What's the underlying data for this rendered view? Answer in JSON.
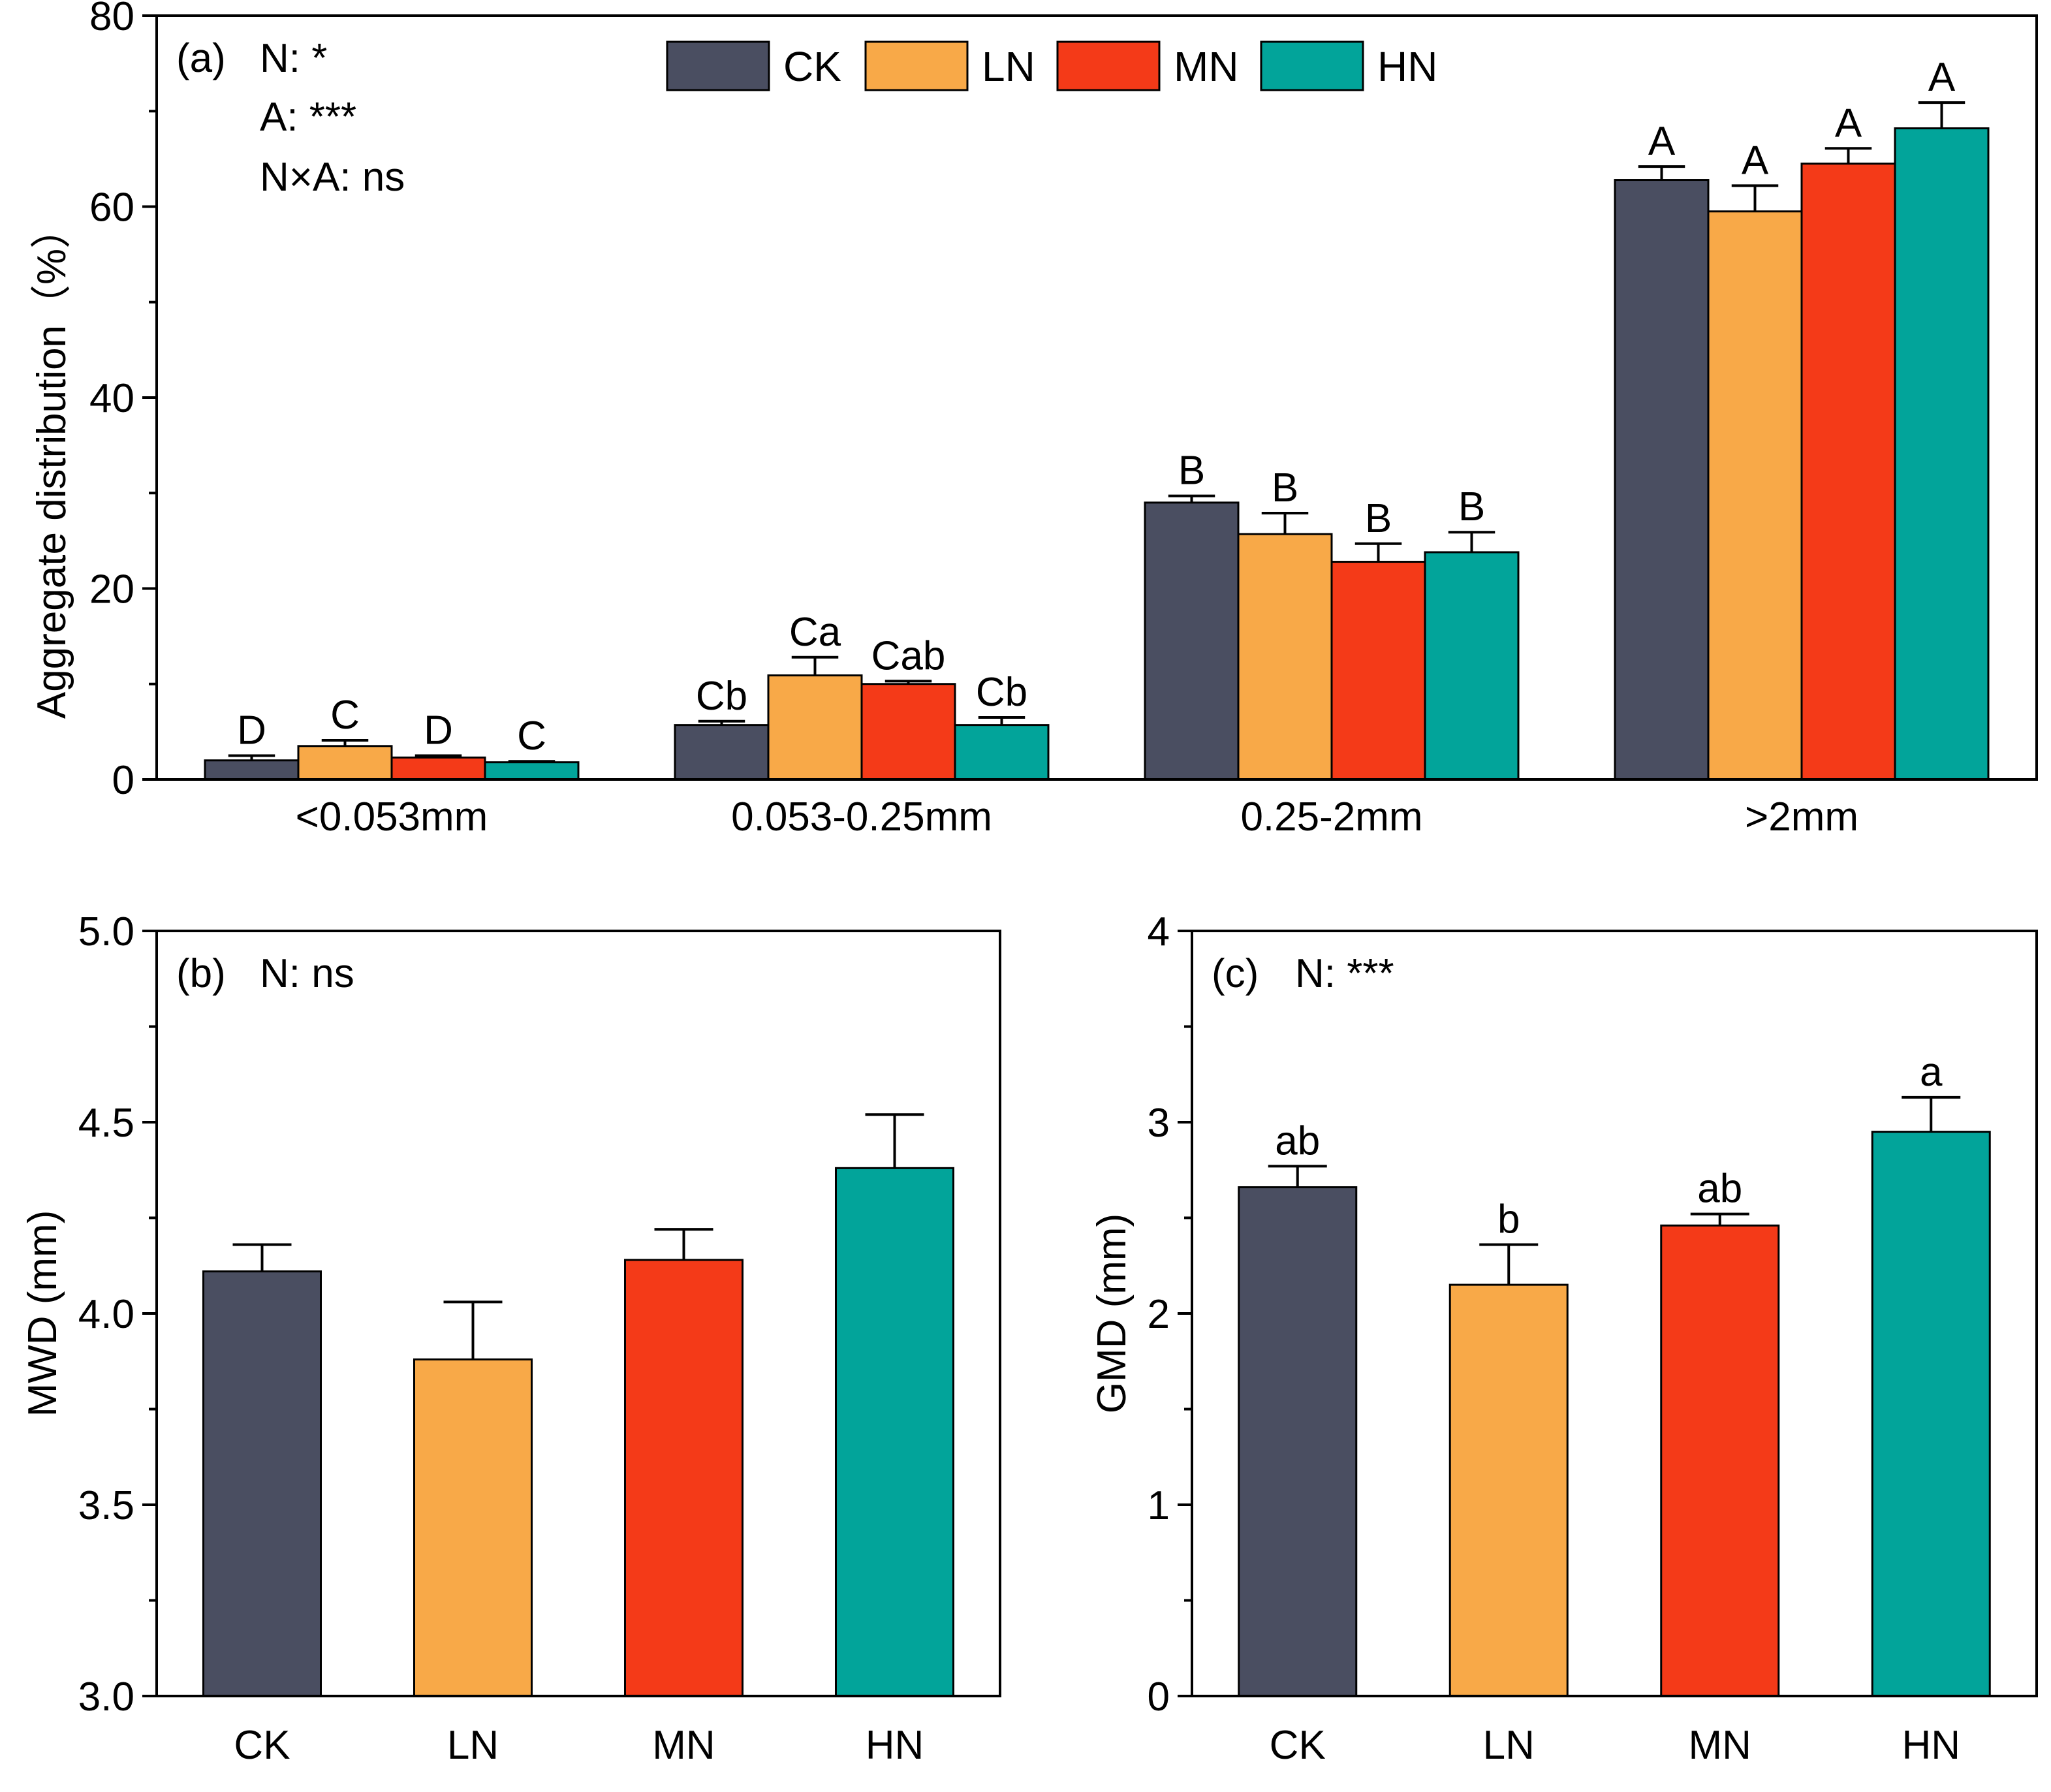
{
  "colors": {
    "CK": "#4a4e61",
    "LN": "#f8a948",
    "MN": "#f43a18",
    "HN": "#02a49a"
  },
  "legend": [
    "CK",
    "LN",
    "MN",
    "HN"
  ],
  "chart_data": [
    {
      "id": "a",
      "type": "bar",
      "panel_label": "(a)",
      "stats": [
        "N: *",
        "A: ***",
        "N×A: ns"
      ],
      "ylabel": "Aggregate distribution（%）",
      "xlabel": "",
      "ylim": [
        0,
        80
      ],
      "yticks": [
        "0",
        "20",
        "40",
        "60",
        "80"
      ],
      "categories": [
        "<0.053mm",
        "0.053-0.25mm",
        "0.25-2mm",
        ">2mm"
      ],
      "series": [
        {
          "name": "CK",
          "values": [
            2.0,
            5.7,
            29.0,
            62.8
          ],
          "errors": [
            0.5,
            0.4,
            0.7,
            1.4
          ],
          "letters": [
            "D",
            "Cb",
            "B",
            "A"
          ]
        },
        {
          "name": "LN",
          "values": [
            3.5,
            10.9,
            25.7,
            59.5
          ],
          "errors": [
            0.6,
            1.9,
            2.2,
            2.7
          ],
          "letters": [
            "C",
            "Ca",
            "B",
            "A"
          ]
        },
        {
          "name": "MN",
          "values": [
            2.3,
            10.0,
            22.8,
            64.5
          ],
          "errors": [
            0.2,
            0.3,
            1.9,
            1.6
          ],
          "letters": [
            "D",
            "Cab",
            "B",
            "A"
          ]
        },
        {
          "name": "HN",
          "values": [
            1.8,
            5.7,
            23.8,
            68.2
          ],
          "errors": [
            0.1,
            0.8,
            2.1,
            2.7
          ],
          "letters": [
            "C",
            "Cb",
            "B",
            "A"
          ]
        }
      ]
    },
    {
      "id": "b",
      "type": "bar",
      "panel_label": "(b)",
      "stats": [
        "N: ns"
      ],
      "ylabel": "MWD (mm)",
      "xlabel": "",
      "ylim": [
        3.0,
        5.0
      ],
      "yticks": [
        "3.0",
        "3.5",
        "4.0",
        "4.5",
        "5.0"
      ],
      "categories": [
        "CK",
        "LN",
        "MN",
        "HN"
      ],
      "values": [
        4.11,
        3.88,
        4.14,
        4.38
      ],
      "errors": [
        0.07,
        0.15,
        0.08,
        0.14
      ],
      "letters": [
        "",
        "",
        "",
        ""
      ]
    },
    {
      "id": "c",
      "type": "bar",
      "panel_label": "(c)",
      "stats": [
        "N: ***"
      ],
      "ylabel": "GMD (mm)",
      "xlabel": "",
      "ylim": [
        0,
        4
      ],
      "yticks": [
        "0",
        "1",
        "2",
        "3",
        "4"
      ],
      "categories": [
        "CK",
        "LN",
        "MN",
        "HN"
      ],
      "values": [
        2.66,
        2.15,
        2.46,
        2.95
      ],
      "errors": [
        0.11,
        0.21,
        0.06,
        0.18
      ],
      "letters": [
        "ab",
        "b",
        "ab",
        "a"
      ]
    }
  ]
}
